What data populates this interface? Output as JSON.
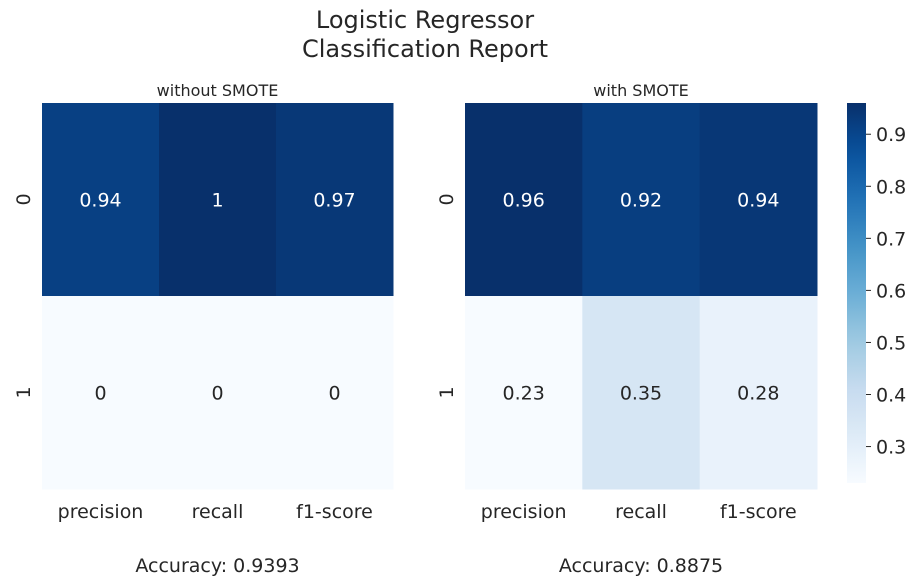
{
  "chart_data": {
    "type": "heatmap",
    "title": [
      "Logistic Regressor",
      "Classification Report"
    ],
    "colormap": "Blues",
    "colors": {
      "low": "#f7fbff",
      "mid_low": "#d0e1f2",
      "mid": "#6aaed6",
      "mid_high": "#2171b5",
      "high": "#08306b",
      "text_dark": "#262626",
      "text_light": "#ffffff"
    },
    "color_range": [
      0.23,
      0.96
    ],
    "panels": [
      {
        "title": "without SMOTE",
        "columns": [
          "precision",
          "recall",
          "f1-score"
        ],
        "rows": [
          "0",
          "1"
        ],
        "values": [
          [
            0.94,
            1,
            0.97
          ],
          [
            0,
            0,
            0
          ]
        ],
        "labels": [
          [
            "0.94",
            "1",
            "0.97"
          ],
          [
            "0",
            "0",
            "0"
          ]
        ],
        "caption": "Accuracy: 0.9393"
      },
      {
        "title": "with SMOTE",
        "columns": [
          "precision",
          "recall",
          "f1-score"
        ],
        "rows": [
          "0",
          "1"
        ],
        "values": [
          [
            0.96,
            0.92,
            0.94
          ],
          [
            0.23,
            0.35,
            0.28
          ]
        ],
        "labels": [
          [
            "0.96",
            "0.92",
            "0.94"
          ],
          [
            "0.23",
            "0.35",
            "0.28"
          ]
        ],
        "caption": "Accuracy: 0.8875"
      }
    ],
    "colorbar": {
      "ticks": [
        0.3,
        0.4,
        0.5,
        0.6,
        0.7,
        0.8,
        0.9
      ],
      "tick_labels": [
        "0.3",
        "0.4",
        "0.5",
        "0.6",
        "0.7",
        "0.8",
        "0.9"
      ]
    }
  }
}
